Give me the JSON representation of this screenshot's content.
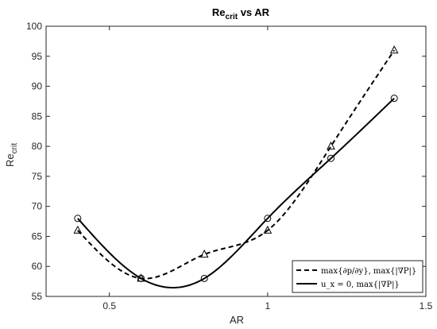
{
  "chart_data": {
    "type": "line",
    "title": {
      "main": "Re",
      "sub": "crit",
      "rest": " vs AR"
    },
    "xlabel": "AR",
    "ylabel": {
      "main": "Re",
      "sub": "crit"
    },
    "xlim": [
      0.3,
      1.5
    ],
    "ylim": [
      55,
      100
    ],
    "xticks": [
      0.5,
      1,
      1.5
    ],
    "xtick_labels": [
      "0.5",
      "1",
      "1.5"
    ],
    "yticks": [
      55,
      60,
      65,
      70,
      75,
      80,
      85,
      90,
      95,
      100
    ],
    "ytick_labels": [
      "55",
      "60",
      "65",
      "70",
      "75",
      "80",
      "85",
      "90",
      "95",
      "100"
    ],
    "grid": false,
    "legend_position": "bottom-right",
    "series": [
      {
        "name": "max{∂p/∂y}, max{|∇P|}",
        "line_style": "dashed",
        "marker": "triangle",
        "color": "#000000",
        "x": [
          0.4,
          0.6,
          0.8,
          1.0,
          1.2,
          1.4
        ],
        "y": [
          66,
          58,
          62,
          66,
          80,
          96
        ]
      },
      {
        "name": "u_x = 0,  max{|∇P|}",
        "line_style": "solid",
        "marker": "circle",
        "color": "#000000",
        "x": [
          0.4,
          0.6,
          0.8,
          1.0,
          1.2,
          1.4
        ],
        "y": [
          68,
          58,
          58,
          68,
          78,
          88
        ]
      }
    ]
  }
}
